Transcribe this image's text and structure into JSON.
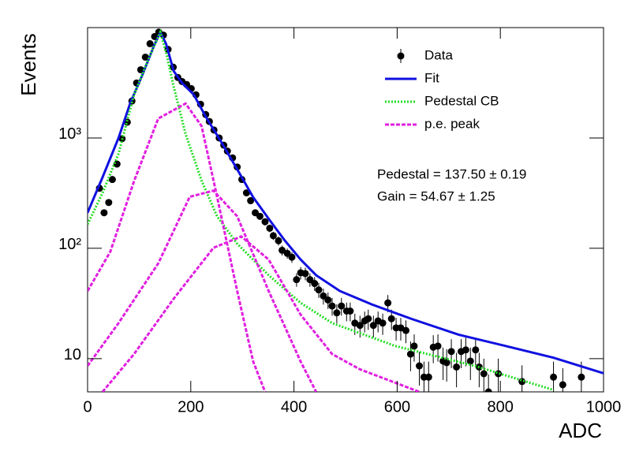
{
  "chart_data": {
    "type": "scatter",
    "xlabel": "ADC",
    "ylabel": "Events",
    "log_y": true,
    "xlim": [
      0,
      1000
    ],
    "ylim": [
      5,
      10000
    ],
    "xticks": [
      0,
      200,
      400,
      600,
      800,
      1000
    ],
    "yticks": [
      {
        "value": 10,
        "label": "10"
      },
      {
        "value": 100,
        "label": "10²"
      },
      {
        "value": 1000,
        "label": "10³"
      }
    ],
    "legend": "upper right",
    "annotations": [
      "Pedestal = 137.50 ± 0.19",
      "Gain = 54.67 ± 1.25"
    ],
    "series": [
      {
        "name": "Data",
        "color": "#000000",
        "style": "points",
        "x": [
          23,
          32,
          41,
          48,
          57,
          67,
          77,
          86,
          95,
          103,
          112,
          121,
          130,
          138,
          147,
          156,
          166,
          175,
          183,
          192,
          201,
          210,
          219,
          229,
          236,
          245,
          255,
          264,
          271,
          281,
          290,
          299,
          308,
          316,
          325,
          334,
          344,
          353,
          360,
          370,
          377,
          387,
          396,
          405,
          413,
          422,
          431,
          440,
          448,
          457,
          466,
          474,
          483,
          492,
          502,
          509,
          518,
          528,
          537,
          544,
          554,
          563,
          572,
          582,
          589,
          598,
          607,
          617,
          626,
          633,
          643,
          652,
          661,
          670,
          679,
          689,
          696,
          705,
          715,
          724,
          733,
          742,
          752,
          759,
          768,
          777,
          796,
          842,
          903,
          921,
          957
        ],
        "values": [
          350,
          210,
          260,
          420,
          580,
          985,
          1390,
          2160,
          3150,
          4150,
          5400,
          7150,
          8300,
          9100,
          8550,
          6350,
          4380,
          3530,
          3250,
          3050,
          2800,
          2460,
          2020,
          1630,
          1410,
          1180,
          1000,
          860,
          760,
          660,
          545,
          420,
          318,
          270,
          210,
          195,
          174,
          152,
          130,
          117,
          96,
          90,
          83,
          52,
          60,
          59,
          52,
          48,
          42,
          37,
          34,
          30,
          26,
          30,
          27,
          27,
          21,
          20,
          22,
          23,
          20,
          22,
          21,
          32,
          23,
          19,
          19,
          18,
          11,
          13,
          8.6,
          6.8,
          6.8,
          12.7,
          13,
          9.5,
          9.2,
          11.6,
          8.4,
          11.6,
          12,
          9.5,
          12,
          8.4,
          7.3,
          5,
          7.3,
          6.2,
          6.8,
          5.8,
          6.8
        ],
        "errors": [
          19,
          14,
          16,
          20,
          24,
          31,
          37,
          46,
          56,
          64,
          73,
          85,
          91,
          95,
          92,
          80,
          66,
          59,
          57,
          55,
          53,
          50,
          45,
          40,
          38,
          34,
          32,
          29,
          28,
          26,
          23,
          20,
          18,
          16,
          14,
          14,
          13,
          12,
          11,
          11,
          10,
          9.5,
          9.1,
          7.2,
          7.7,
          7.7,
          7.2,
          6.9,
          6.5,
          6.1,
          5.8,
          5.5,
          5.1,
          5.5,
          5.2,
          5.2,
          4.6,
          4.5,
          4.7,
          4.8,
          4.5,
          4.7,
          4.6,
          5.7,
          4.8,
          4.4,
          4.4,
          4.2,
          3.3,
          3.6,
          2.9,
          2.6,
          2.6,
          3.6,
          3.6,
          3.1,
          3.0,
          3.4,
          2.9,
          3.4,
          3.5,
          3.1,
          3.5,
          2.9,
          2.7,
          2.2,
          2.7,
          2.5,
          2.6,
          2.4,
          2.6
        ]
      },
      {
        "name": "Fit",
        "color": "#1010e0",
        "style": "solid",
        "x": [
          0,
          29,
          60,
          83,
          106,
          129,
          141,
          152,
          167,
          183,
          206,
          229,
          259,
          290,
          321,
          351,
          382,
          413,
          443,
          489,
          551,
          627,
          719,
          811,
          903,
          1003
        ],
        "values": [
          210,
          440,
          1000,
          2090,
          3700,
          6900,
          9100,
          7150,
          4030,
          3150,
          2460,
          1560,
          920,
          520,
          290,
          185,
          118,
          79,
          57,
          41,
          31,
          23,
          16.5,
          13,
          10.2,
          7.3
        ]
      },
      {
        "name": "Pedestal CB",
        "color": "#22dd22",
        "style": "dotted",
        "x": [
          0,
          29,
          60,
          90,
          121,
          141,
          152,
          167,
          190,
          221,
          251,
          290,
          351,
          413,
          474,
          597,
          750,
          903
        ],
        "values": [
          165,
          318,
          720,
          2460,
          5600,
          9100,
          6000,
          2900,
          1085,
          410,
          195,
          110,
          57,
          32,
          21,
          13,
          8.6,
          5.2
        ]
      },
      {
        "name": "p.e. peak",
        "color": "#e020e0",
        "style": "dashed",
        "curves": [
          {
            "x": [
              0,
              44,
              90,
              137,
              190,
              221,
              251,
              290,
              321,
              344
            ],
            "values": [
              41,
              93,
              405,
              1500,
              2050,
              1280,
              293,
              41,
              9.4,
              5
            ]
          },
          {
            "x": [
              0,
              60,
              137,
              198,
              244,
              290,
              351,
              413,
              443
            ],
            "values": [
              8.6,
              21,
              73,
              293,
              333,
              195,
              41,
              9.4,
              5
            ]
          },
          {
            "x": [
              29,
              90,
              167,
              244,
              298,
              351,
              413,
              474,
              528,
              643
            ],
            "values": [
              5,
              11,
              35,
              101,
              128,
              79,
              25,
              11,
              8,
              5
            ]
          }
        ]
      }
    ]
  }
}
